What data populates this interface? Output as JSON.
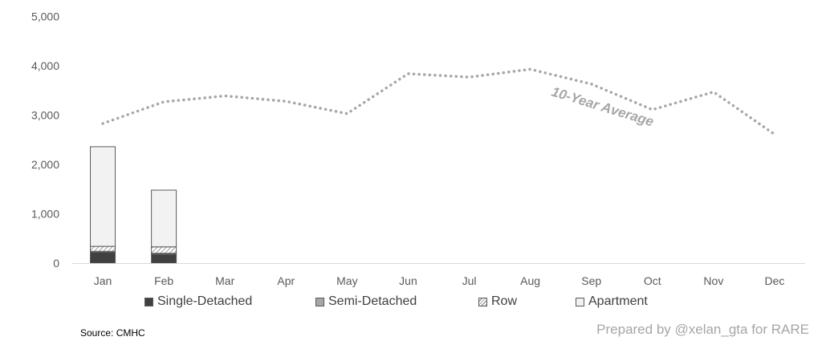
{
  "chart_data": {
    "type": "bar",
    "stacked": true,
    "categories": [
      "Jan",
      "Feb",
      "Mar",
      "Apr",
      "May",
      "Jun",
      "Jul",
      "Aug",
      "Sep",
      "Oct",
      "Nov",
      "Dec"
    ],
    "series": [
      {
        "name": "Single-Detached",
        "values": [
          220,
          180,
          null,
          null,
          null,
          null,
          null,
          null,
          null,
          null,
          null,
          null
        ],
        "color": "#404040"
      },
      {
        "name": "Semi-Detached",
        "values": [
          20,
          20,
          null,
          null,
          null,
          null,
          null,
          null,
          null,
          null,
          null,
          null
        ],
        "color": "#a6a6a6"
      },
      {
        "name": "Row",
        "values": [
          100,
          130,
          null,
          null,
          null,
          null,
          null,
          null,
          null,
          null,
          null,
          null
        ],
        "color": "#ffffff",
        "pattern": "diagonal-hatch"
      },
      {
        "name": "Apartment",
        "values": [
          2020,
          1150,
          null,
          null,
          null,
          null,
          null,
          null,
          null,
          null,
          null,
          null
        ],
        "color": "#f2f2f2"
      }
    ],
    "line": {
      "name": "10-Year Average",
      "style": "dotted",
      "color": "#a6a6a6",
      "values": [
        2830,
        3270,
        3390,
        3280,
        3030,
        3840,
        3770,
        3930,
        3630,
        3110,
        3470,
        2610
      ]
    },
    "y_ticks": [
      "0",
      "1,000",
      "2,000",
      "3,000",
      "4,000",
      "5,000"
    ],
    "ylim": [
      0,
      5000
    ],
    "grid": false,
    "legend_position": "bottom",
    "xlabel": "",
    "ylabel": ""
  },
  "source_note": "Source: CMHC",
  "credit": "Prepared by @xelan_gta for RARE"
}
